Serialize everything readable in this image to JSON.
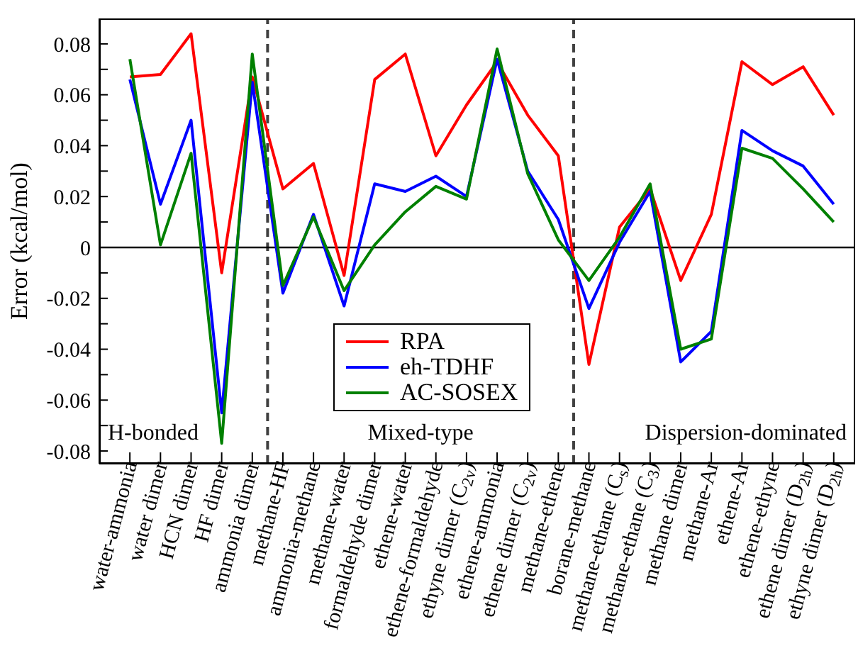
{
  "chart_data": {
    "type": "line",
    "ylabel": "Error (kcal/mol)",
    "categories": [
      "water-ammonia",
      "water dimer",
      "HCN dimer",
      "HF dimer",
      "ammonia dimer",
      "methane-HF",
      "ammonia-methane",
      "methane-water",
      "formaldehyde dimer",
      "ethene-water",
      "ethene-formaldehyde",
      "ethyne dimer (C$_{2v}$)",
      "ethene-ammonia",
      "ethene dimer (C$_{2v}$)",
      "methane-ethene",
      "borane-methane",
      "methane-ethane (C$_{s}$)",
      "methane-ethane (C$_{3}$)",
      "methane dimer",
      "methane-Ar",
      "ethene-Ar",
      "ethene-ethyne",
      "ethene dimer (D$_{2h}$)",
      "ethyne dimer (D$_{2h}$)"
    ],
    "series": [
      {
        "name": "RPA",
        "color": "#ff0000",
        "values": [
          0.067,
          0.068,
          0.084,
          -0.01,
          0.067,
          0.023,
          0.033,
          -0.011,
          0.066,
          0.076,
          0.036,
          0.056,
          0.073,
          0.052,
          0.036,
          -0.046,
          0.008,
          0.023,
          -0.013,
          0.013,
          0.073,
          0.064,
          0.071,
          0.052
        ]
      },
      {
        "name": "eh-TDHF",
        "color": "#0000ff",
        "values": [
          0.066,
          0.017,
          0.05,
          -0.065,
          0.065,
          -0.018,
          0.013,
          -0.023,
          0.025,
          0.022,
          0.028,
          0.02,
          0.074,
          0.03,
          0.011,
          -0.024,
          0.002,
          0.022,
          -0.045,
          -0.033,
          0.046,
          0.038,
          0.032,
          0.017
        ]
      },
      {
        "name": "AC-SOSEX",
        "color": "#008000",
        "values": [
          0.074,
          0.001,
          0.037,
          -0.077,
          0.076,
          -0.015,
          0.012,
          -0.017,
          0.001,
          0.014,
          0.024,
          0.019,
          0.078,
          0.029,
          0.003,
          -0.013,
          0.004,
          0.025,
          -0.04,
          -0.036,
          0.039,
          0.035,
          0.023,
          0.01
        ]
      }
    ],
    "ylim": [
      -0.085,
      0.09
    ],
    "yticks": [
      {
        "value": -0.08,
        "label": "-0.08"
      },
      {
        "value": -0.07,
        "label": null
      },
      {
        "value": -0.06,
        "label": "-0.06"
      },
      {
        "value": -0.05,
        "label": null
      },
      {
        "value": -0.04,
        "label": "-0.04"
      },
      {
        "value": -0.03,
        "label": null
      },
      {
        "value": -0.02,
        "label": "-0.02"
      },
      {
        "value": -0.01,
        "label": null
      },
      {
        "value": 0,
        "label": "0"
      },
      {
        "value": 0.01,
        "label": null
      },
      {
        "value": 0.02,
        "label": "0.02"
      },
      {
        "value": 0.03,
        "label": null
      },
      {
        "value": 0.04,
        "label": "0.04"
      },
      {
        "value": 0.05,
        "label": null
      },
      {
        "value": 0.06,
        "label": "0.06"
      },
      {
        "value": 0.07,
        "label": null
      },
      {
        "value": 0.08,
        "label": "0.08"
      }
    ],
    "ref_lines": [
      {
        "axis": "y",
        "value": 0,
        "color": "#000000",
        "line_style": "solid"
      }
    ],
    "annotations": [
      "H-bonded",
      "Mixed-type",
      "Dispersion-dominated"
    ],
    "legend": "bottom",
    "grid": false,
    "marker": "none",
    "line_style": "solid"
  }
}
